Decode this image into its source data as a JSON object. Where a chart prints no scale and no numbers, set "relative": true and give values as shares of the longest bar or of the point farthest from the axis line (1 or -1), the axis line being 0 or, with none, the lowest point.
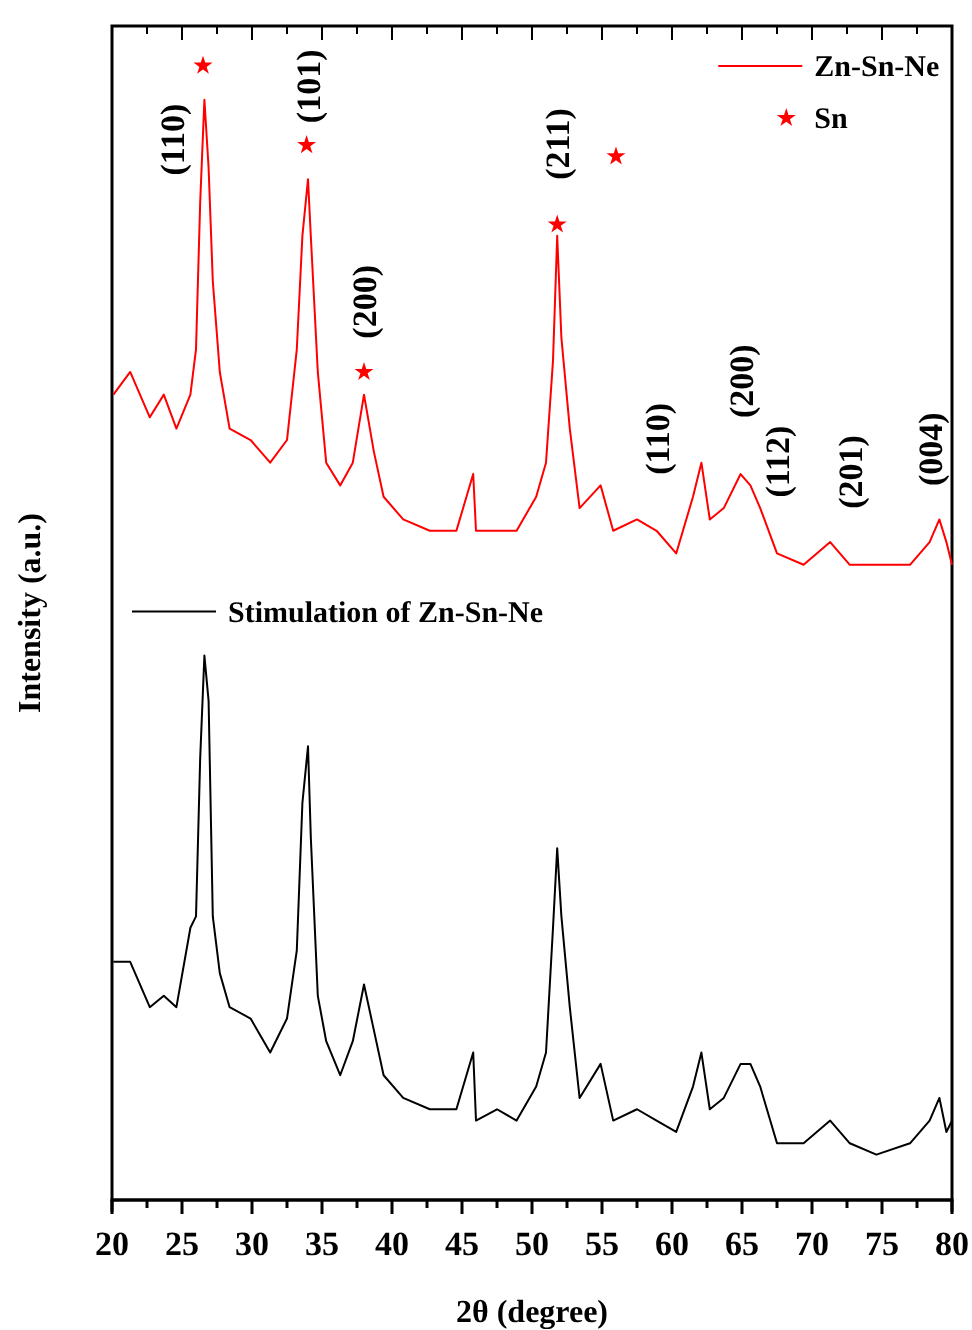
{
  "chart_data": {
    "type": "line",
    "xlabel": "2θ (degree)",
    "ylabel": "Intensity (a.u.)",
    "relative": true,
    "xlim": [
      20,
      80
    ],
    "xticks": [
      20,
      {
        "value": 22.5,
        "label": null
      },
      25,
      {
        "value": 27.5,
        "label": null
      },
      30,
      {
        "value": 32.5,
        "label": null
      },
      35,
      {
        "value": 37.5,
        "label": null
      },
      40,
      {
        "value": 42.5,
        "label": null
      },
      45,
      {
        "value": 47.5,
        "label": null
      },
      50,
      {
        "value": 52.5,
        "label": null
      },
      55,
      {
        "value": 57.5,
        "label": null
      },
      60,
      {
        "value": 62.5,
        "label": null
      },
      65,
      {
        "value": 67.5,
        "label": null
      },
      70,
      {
        "value": 72.5,
        "label": null
      },
      75,
      {
        "value": 77.5,
        "label": null
      },
      80
    ],
    "legend": "top right",
    "grid": false,
    "series": [
      {
        "name": "Zn-Sn-Ne",
        "color": "#ff0000",
        "x": [
          20.1,
          21.3,
          22.7,
          23.7,
          24.6,
          25.6,
          26.0,
          26.3,
          26.6,
          26.9,
          27.2,
          27.7,
          28.4,
          29.9,
          31.3,
          32.5,
          33.2,
          33.6,
          34.0,
          34.2,
          34.7,
          35.3,
          36.3,
          37.2,
          38.0,
          38.7,
          39.4,
          40.8,
          42.7,
          44.6,
          45.8,
          46.0,
          47.5,
          48.9,
          50.3,
          51.0,
          51.5,
          51.8,
          52.1,
          52.7,
          53.4,
          54.9,
          55.8,
          57.5,
          58.9,
          60.3,
          61.5,
          62.1,
          62.7,
          63.7,
          64.9,
          65.6,
          66.3,
          67.5,
          69.4,
          71.3,
          72.7,
          74.6,
          77.0,
          78.4,
          79.1,
          79.6,
          80.0
        ],
        "values": [
          0.71,
          0.73,
          0.69,
          0.71,
          0.68,
          0.71,
          0.75,
          0.88,
          0.97,
          0.91,
          0.81,
          0.73,
          0.68,
          0.67,
          0.65,
          0.67,
          0.75,
          0.85,
          0.9,
          0.85,
          0.73,
          0.65,
          0.63,
          0.65,
          0.71,
          0.66,
          0.62,
          0.6,
          0.59,
          0.59,
          0.64,
          0.59,
          0.59,
          0.59,
          0.62,
          0.65,
          0.74,
          0.85,
          0.76,
          0.68,
          0.61,
          0.63,
          0.59,
          0.6,
          0.59,
          0.57,
          0.62,
          0.65,
          0.6,
          0.61,
          0.64,
          0.63,
          0.61,
          0.57,
          0.56,
          0.58,
          0.56,
          0.56,
          0.56,
          0.58,
          0.6,
          0.58,
          0.56
        ]
      },
      {
        "name": "Stimulation of Zn-Sn-Ne",
        "color": "#000000",
        "x": [
          20.1,
          21.3,
          22.7,
          23.7,
          24.6,
          25.6,
          26.0,
          26.3,
          26.6,
          26.9,
          27.2,
          27.7,
          28.4,
          29.9,
          31.3,
          32.5,
          33.2,
          33.6,
          34.0,
          34.2,
          34.7,
          35.3,
          36.3,
          37.2,
          38.0,
          38.7,
          39.4,
          40.8,
          42.7,
          44.6,
          45.8,
          46.0,
          47.5,
          48.9,
          50.3,
          51.0,
          51.5,
          51.8,
          52.1,
          52.7,
          53.4,
          54.9,
          55.8,
          57.5,
          58.9,
          60.3,
          61.5,
          62.1,
          62.7,
          63.7,
          64.9,
          65.6,
          66.3,
          67.5,
          69.4,
          71.3,
          72.7,
          74.6,
          77.0,
          78.4,
          79.1,
          79.6,
          80.0
        ],
        "values": [
          0.21,
          0.21,
          0.17,
          0.18,
          0.17,
          0.24,
          0.25,
          0.39,
          0.48,
          0.44,
          0.25,
          0.2,
          0.17,
          0.16,
          0.13,
          0.16,
          0.22,
          0.35,
          0.4,
          0.32,
          0.18,
          0.14,
          0.11,
          0.14,
          0.19,
          0.15,
          0.11,
          0.09,
          0.08,
          0.08,
          0.13,
          0.07,
          0.08,
          0.07,
          0.1,
          0.13,
          0.24,
          0.31,
          0.25,
          0.17,
          0.09,
          0.12,
          0.07,
          0.08,
          0.07,
          0.06,
          0.1,
          0.13,
          0.08,
          0.09,
          0.12,
          0.12,
          0.1,
          0.05,
          0.05,
          0.07,
          0.05,
          0.04,
          0.05,
          0.07,
          0.09,
          0.06,
          0.07
        ]
      },
      {
        "name": "Sn",
        "type": "scatter",
        "marker": "star",
        "color": "#ff0000",
        "x": [
          26.5,
          33.9,
          38.0,
          51.8,
          56.0
        ],
        "values": [
          1.0,
          0.93,
          0.73,
          0.86,
          0.92
        ]
      }
    ],
    "annotations": [
      {
        "text": "(110)",
        "x": 26.6,
        "y": 0.97
      },
      {
        "text": "(101)",
        "x": 34.0,
        "y": 0.9
      },
      {
        "text": "(200)",
        "x": 38.0,
        "y": 0.71
      },
      {
        "text": "(211)",
        "x": 51.8,
        "y": 0.85
      },
      {
        "text": "(110)",
        "x": 58.9,
        "y": 0.59
      },
      {
        "text": "(200)",
        "x": 64.9,
        "y": 0.64
      },
      {
        "text": "(112)",
        "x": 67.5,
        "y": 0.57
      },
      {
        "text": "(201)",
        "x": 72.7,
        "y": 0.56
      },
      {
        "text": "(004)",
        "x": 78.4,
        "y": 0.58
      }
    ]
  }
}
